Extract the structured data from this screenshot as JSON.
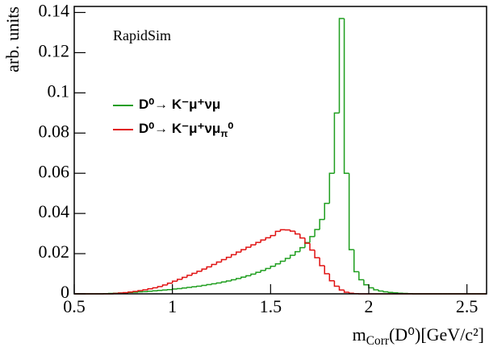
{
  "chart_data": {
    "type": "histogram",
    "annotation": "RapidSim",
    "x_label": "mCorr(D⁰)[GeV/c²]",
    "y_label": "arb. units",
    "xlim": [
      0.5,
      2.6
    ],
    "ylim": [
      0,
      0.143
    ],
    "xticks": [
      0.5,
      1,
      1.5,
      2,
      2.5
    ],
    "yticks": [
      0,
      0.02,
      0.04,
      0.06,
      0.08,
      0.1,
      0.12,
      0.14
    ],
    "legend": "upper left",
    "bins": [
      0.5,
      0.525,
      0.55,
      0.575,
      0.6,
      0.625,
      0.65,
      0.675,
      0.7,
      0.725,
      0.75,
      0.775,
      0.8,
      0.825,
      0.85,
      0.875,
      0.9,
      0.925,
      0.95,
      0.975,
      1.0,
      1.025,
      1.05,
      1.075,
      1.1,
      1.125,
      1.15,
      1.175,
      1.2,
      1.225,
      1.25,
      1.275,
      1.3,
      1.325,
      1.35,
      1.375,
      1.4,
      1.425,
      1.45,
      1.475,
      1.5,
      1.525,
      1.55,
      1.575,
      1.6,
      1.625,
      1.65,
      1.675,
      1.7,
      1.725,
      1.75,
      1.775,
      1.8,
      1.825,
      1.85,
      1.875,
      1.9,
      1.925,
      1.95,
      1.975,
      2.0,
      2.025,
      2.05,
      2.075,
      2.1,
      2.125,
      2.15,
      2.175,
      2.2,
      2.225,
      2.25,
      2.275,
      2.3,
      2.325,
      2.35,
      2.375,
      2.4,
      2.425,
      2.45,
      2.475,
      2.5,
      2.525,
      2.55,
      2.575,
      2.6
    ],
    "series": [
      {
        "name": "D⁰→ K⁻μ⁺νμ",
        "color": "#1e9e1e",
        "values": [
          0,
          0,
          0,
          0,
          0,
          0,
          0.0001,
          0.0002,
          0.0003,
          0.0004,
          0.0005,
          0.0007,
          0.0008,
          0.001,
          0.0011,
          0.0013,
          0.0015,
          0.0017,
          0.0019,
          0.0021,
          0.0024,
          0.0026,
          0.0029,
          0.0032,
          0.0035,
          0.0038,
          0.0042,
          0.0046,
          0.005,
          0.0054,
          0.0059,
          0.0064,
          0.007,
          0.0076,
          0.0083,
          0.009,
          0.0098,
          0.0107,
          0.0116,
          0.0126,
          0.0137,
          0.0149,
          0.0162,
          0.0176,
          0.0192,
          0.021,
          0.023,
          0.0255,
          0.0285,
          0.032,
          0.037,
          0.045,
          0.06,
          0.09,
          0.137,
          0.06,
          0.022,
          0.011,
          0.007,
          0.0045,
          0.003,
          0.002,
          0.0014,
          0.001,
          0.0007,
          0.0005,
          0.0003,
          0.0002,
          0.0001,
          0,
          0,
          0,
          0,
          0,
          0,
          0,
          0,
          0,
          0,
          0,
          0,
          0,
          0,
          0
        ]
      },
      {
        "name": "D⁰→ K⁻μ⁺νμπ⁰",
        "color": "#e01010",
        "values": [
          0,
          0,
          0,
          0,
          0,
          0,
          0,
          0,
          0.0002,
          0.0004,
          0.0006,
          0.0009,
          0.0012,
          0.0016,
          0.002,
          0.0025,
          0.003,
          0.0036,
          0.0044,
          0.0053,
          0.0063,
          0.0072,
          0.0082,
          0.0092,
          0.0102,
          0.0112,
          0.0123,
          0.0134,
          0.0146,
          0.0158,
          0.017,
          0.0182,
          0.0195,
          0.0208,
          0.022,
          0.0232,
          0.0244,
          0.0256,
          0.0268,
          0.0279,
          0.029,
          0.0311,
          0.0319,
          0.0318,
          0.0312,
          0.0298,
          0.0278,
          0.0252,
          0.0218,
          0.018,
          0.014,
          0.01,
          0.0065,
          0.0038,
          0.0019,
          0.0008,
          0.0003,
          0.0001,
          0,
          0,
          0,
          0,
          0,
          0,
          0,
          0,
          0,
          0,
          0,
          0,
          0,
          0,
          0,
          0,
          0,
          0,
          0,
          0,
          0,
          0,
          0,
          0,
          0,
          0
        ]
      }
    ]
  }
}
